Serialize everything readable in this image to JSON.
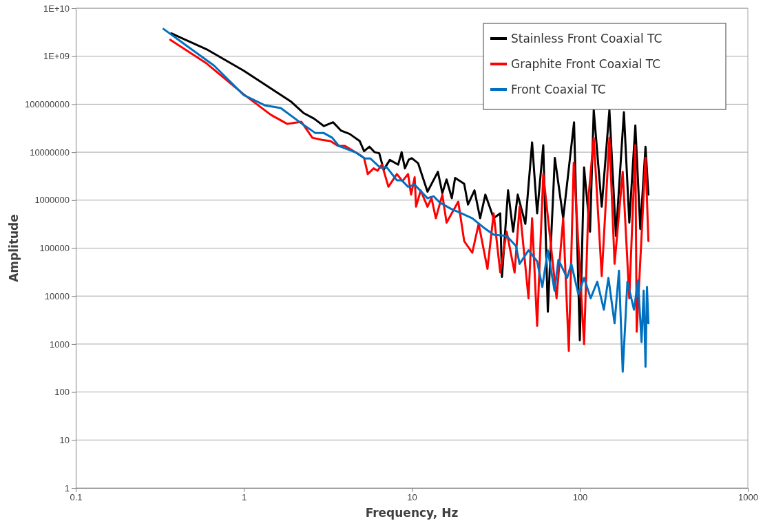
{
  "chart_data": {
    "type": "line",
    "xlabel": "Frequency, Hz",
    "ylabel": "Amplitude",
    "log": "xy",
    "grid": "y",
    "legend": "top right",
    "marker": "none",
    "line_style": "solid",
    "xlim": [
      0.1,
      1000
    ],
    "xticks": [
      0.1,
      1,
      10,
      100,
      1000
    ],
    "ylim": [
      1,
      10000000000
    ],
    "yticks": [
      {
        "value": 1,
        "label": "1"
      },
      {
        "value": 10,
        "label": "10"
      },
      {
        "value": 100,
        "label": "100"
      },
      {
        "value": 1000,
        "label": "1000"
      },
      {
        "value": 10000,
        "label": "10000"
      },
      {
        "value": 100000,
        "label": "100000"
      },
      {
        "value": 1000000,
        "label": "1000000"
      },
      {
        "value": 10000000,
        "label": "10000000"
      },
      {
        "value": 100000000,
        "label": "100000000"
      },
      {
        "value": 1000000000,
        "label": "1E+09"
      },
      {
        "value": 10000000000,
        "label": "1E+10"
      }
    ],
    "series": [
      {
        "name": "Stainless Front Coaxial TC",
        "color": "#000000",
        "x": [
          0.37,
          0.6,
          1,
          1.9,
          2.26,
          2.62,
          3.0,
          3.4,
          3.8,
          4.27,
          4.9,
          5.2,
          5.6,
          6.0,
          6.4,
          6.8,
          7.4,
          8.3,
          8.7,
          9.1,
          9.6,
          10,
          10.9,
          12.4,
          14.3,
          15.2,
          16.1,
          17.3,
          18.1,
          20.5,
          21.6,
          23.6,
          25.5,
          27.4,
          30.7,
          33.6,
          34.4,
          37.4,
          40.1,
          42.7,
          47.4,
          52,
          55.7,
          60.6,
          64.5,
          71,
          79.6,
          92.4,
          100,
          106,
          115,
          121,
          135,
          150,
          164,
          183,
          197,
          214,
          229,
          246,
          256
        ],
        "values": [
          3000000000,
          1400000000,
          500000000,
          115000000,
          66000000,
          50000000,
          35000000,
          42000000,
          28000000,
          24000000,
          17000000,
          10500000,
          13000000,
          10000000,
          9500000,
          4300000,
          6900000,
          5500000,
          10000000,
          4600000,
          7000000,
          7500000,
          5900000,
          1500000,
          3900000,
          1400000,
          2700000,
          1100000,
          2900000,
          2200000,
          810000,
          1600000,
          420000,
          1300000,
          420000,
          530000,
          25000,
          1600000,
          220000,
          1300000,
          320000,
          16000000,
          530000,
          14000000,
          4700,
          7600000,
          420000,
          42000000,
          1200,
          4800000,
          220000,
          76000000,
          730000,
          76000000,
          180000,
          68000000,
          340000,
          36000000,
          250000,
          13000000,
          1300000
        ]
      },
      {
        "name": "Graphite Front Coaxial TC",
        "color": "#ff0000",
        "x": [
          0.365,
          0.6,
          1,
          1.45,
          1.81,
          2.2,
          2.56,
          2.92,
          3.28,
          3.64,
          4.0,
          4.97,
          5.2,
          5.47,
          5.93,
          6.25,
          6.64,
          7.26,
          8.15,
          8.8,
          9.5,
          9.9,
          10.4,
          10.6,
          11.3,
          12.4,
          13.1,
          13.9,
          15.2,
          16.1,
          18.9,
          20.5,
          22.9,
          25,
          28.2,
          30.7,
          33.6,
          36.7,
          40.9,
          43.8,
          49.5,
          52,
          55.7,
          60.6,
          72.7,
          79.6,
          86,
          92,
          106,
          113,
          121,
          135,
          150,
          161,
          180,
          197,
          214,
          218,
          246,
          256
        ],
        "values": [
          2200000000,
          710000000,
          160000000,
          60000000,
          39000000,
          43000000,
          20000000,
          18000000,
          17000000,
          13500000,
          13500000,
          8500000,
          7600000,
          3500000,
          4600000,
          4100000,
          5500000,
          1900000,
          3500000,
          2500000,
          3500000,
          1300000,
          3000000,
          730000,
          1600000,
          730000,
          1100000,
          420000,
          1300000,
          340000,
          930000,
          140000,
          80000,
          320000,
          37000,
          530000,
          31000,
          220000,
          31000,
          730000,
          9000,
          420000,
          2400,
          3500000,
          9000,
          420000,
          720,
          6000000,
          1000,
          1300000,
          20000000,
          26000,
          20000000,
          47000,
          3900000,
          9000,
          14000000,
          1800,
          7600000,
          140000
        ]
      },
      {
        "name": "Front Coaxial TC",
        "color": "#0070c0",
        "x": [
          0.333,
          0.665,
          1,
          1.33,
          1.66,
          2.16,
          2.67,
          3.0,
          3.36,
          3.68,
          4.66,
          5.24,
          5.67,
          6.5,
          7.07,
          8.15,
          8.7,
          9.5,
          10.4,
          12.4,
          13.5,
          14.7,
          17.1,
          19.8,
          22.9,
          26.7,
          30.7,
          36.7,
          41.7,
          43.8,
          49.5,
          55.7,
          59.8,
          64.5,
          70.7,
          74.6,
          84,
          89,
          98,
          106,
          116,
          127,
          139,
          148,
          161,
          171,
          180,
          192,
          210,
          222,
          233,
          240,
          246,
          251,
          256
        ],
        "values": [
          3700000000,
          640000000,
          155000000,
          95000000,
          83000000,
          42000000,
          25000000,
          25000000,
          20000000,
          13500000,
          9800000,
          7400000,
          7400000,
          4700000,
          4900000,
          2600000,
          2600000,
          1900000,
          2100000,
          1100000,
          1200000,
          890000,
          660000,
          530000,
          420000,
          270000,
          190000,
          180000,
          110000,
          47000,
          90000,
          53000,
          15500,
          90000,
          13000,
          57000,
          24000,
          47000,
          11000,
          24000,
          9000,
          20000,
          5200,
          24000,
          2700,
          34000,
          265,
          20000,
          5200,
          21000,
          1100,
          13000,
          335,
          15500,
          2700
        ]
      }
    ]
  }
}
